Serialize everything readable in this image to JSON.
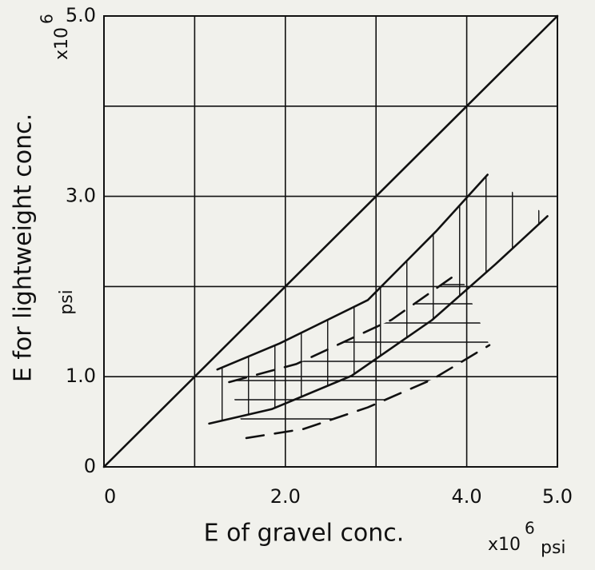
{
  "chart_data": {
    "type": "line",
    "xlabel": "E of gravel conc.",
    "xunit": "x10",
    "xunit_exponent": "6",
    "xunit_suffix": "psi",
    "ylabel": "E for lightweight conc.",
    "yunit": "x10",
    "yunit_exponent": "6",
    "yunit_suffix": "psi",
    "xlim": [
      0,
      5
    ],
    "ylim": [
      0,
      5
    ],
    "xticks": [
      0,
      {
        "value": 2,
        "label": "2.0"
      },
      {
        "value": 4,
        "label": "4.0"
      },
      {
        "value": 5,
        "label": "5.0"
      }
    ],
    "yticks": [
      0,
      {
        "value": 1,
        "label": "1.0"
      },
      {
        "value": 3,
        "label": "3.0"
      },
      {
        "value": 5,
        "label": "5.0"
      }
    ],
    "xgrid": [
      1,
      2,
      3,
      4
    ],
    "ygrid": [
      1,
      2,
      3,
      4
    ],
    "grid": true,
    "color": "#111111",
    "lines": [
      {
        "style": "solid",
        "x": [
          0,
          5
        ],
        "values": [
          0,
          5
        ]
      },
      {
        "style": "solid",
        "x": [
          1.25,
          1.94,
          2.91,
          3.66,
          4.23
        ],
        "values": [
          1.08,
          1.37,
          1.85,
          2.61,
          3.24
        ]
      },
      {
        "style": "solid",
        "x": [
          1.16,
          1.85,
          2.73,
          3.62,
          4.32,
          4.89
        ],
        "values": [
          0.48,
          0.64,
          1.01,
          1.63,
          2.25,
          2.78
        ]
      },
      {
        "style": "dashed",
        "x": [
          1.38,
          2.12,
          3.17,
          3.92
        ],
        "values": [
          0.94,
          1.14,
          1.63,
          2.16
        ]
      },
      {
        "style": "dashed",
        "x": [
          1.57,
          2.2,
          2.91,
          3.62,
          4.25
        ],
        "values": [
          0.32,
          0.42,
          0.66,
          0.97,
          1.35
        ]
      }
    ]
  }
}
